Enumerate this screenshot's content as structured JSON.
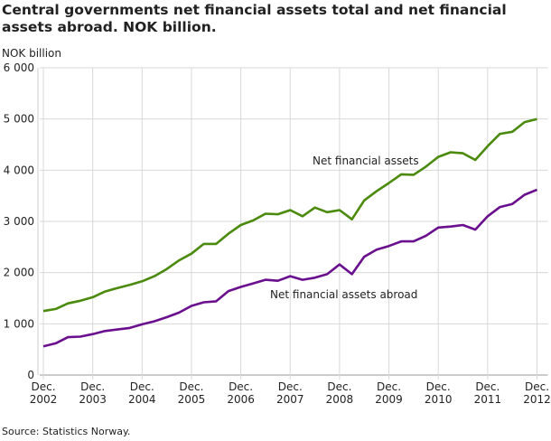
{
  "title": "Central governments net financial assets total and net financial assets abroad. NOK billion.",
  "unit": "NOK billion",
  "source": "Source: Statistics Norway.",
  "chart_data": {
    "type": "line",
    "title": "Central governments net financial assets total and net financial assets abroad. NOK billion.",
    "ylabel": "NOK billion",
    "ylim": [
      0,
      6000
    ],
    "yticks": [
      0,
      1000,
      2000,
      3000,
      4000,
      5000,
      6000
    ],
    "ytick_labels": [
      "0",
      "1 000",
      "2 000",
      "3 000",
      "4 000",
      "5 000",
      "6 000"
    ],
    "x_frequency": "quarterly",
    "x_range": [
      "Dec. 2002",
      "Dec. 2012"
    ],
    "xtick_labels": [
      [
        "Dec.",
        "2002"
      ],
      [
        "Dec.",
        "2003"
      ],
      [
        "Dec.",
        "2004"
      ],
      [
        "Dec.",
        "2005"
      ],
      [
        "Dec.",
        "2006"
      ],
      [
        "Dec.",
        "2007"
      ],
      [
        "Dec.",
        "2008"
      ],
      [
        "Dec.",
        "2009"
      ],
      [
        "Dec.",
        "2010"
      ],
      [
        "Dec.",
        "2011"
      ],
      [
        "Dec.",
        "2012"
      ]
    ],
    "grid": true,
    "series": [
      {
        "name": "Net financial assets",
        "color": "#4a8a0c",
        "values": [
          1250,
          1290,
          1400,
          1450,
          1520,
          1630,
          1700,
          1760,
          1830,
          1930,
          2070,
          2240,
          2370,
          2560,
          2560,
          2760,
          2930,
          3020,
          3150,
          3140,
          3220,
          3100,
          3270,
          3180,
          3220,
          3040,
          3410,
          3590,
          3750,
          3920,
          3910,
          4070,
          4260,
          4350,
          4330,
          4200,
          4470,
          4710,
          4750,
          4940,
          5000
        ]
      },
      {
        "name": "Net financial assets abroad",
        "color": "#6a0f8e",
        "values": [
          560,
          620,
          740,
          750,
          800,
          860,
          890,
          920,
          990,
          1050,
          1130,
          1220,
          1350,
          1420,
          1440,
          1640,
          1720,
          1790,
          1860,
          1840,
          1930,
          1860,
          1900,
          1970,
          2160,
          1970,
          2310,
          2450,
          2520,
          2610,
          2610,
          2720,
          2880,
          2900,
          2930,
          2840,
          3100,
          3280,
          3340,
          3520,
          3620
        ]
      }
    ]
  }
}
